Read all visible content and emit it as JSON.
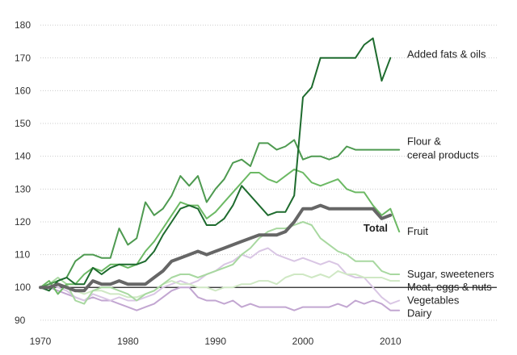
{
  "chart_data": {
    "type": "line",
    "title": "",
    "xlabel": "",
    "ylabel": "",
    "xlim": [
      1970,
      2012
    ],
    "ylim": [
      88,
      182
    ],
    "grid": true,
    "baseline": 100,
    "y_ticks": [
      90,
      100,
      110,
      120,
      130,
      140,
      150,
      160,
      170,
      180
    ],
    "x_ticks": [
      1970,
      1980,
      1990,
      2000,
      2010
    ],
    "series": [
      {
        "name": "Dairy",
        "color": "#c2a6d1",
        "width": 2,
        "x": [
          1970,
          1971,
          1972,
          1973,
          1974,
          1975,
          1976,
          1977,
          1978,
          1979,
          1980,
          1981,
          1982,
          1983,
          1984,
          1985,
          1986,
          1987,
          1988,
          1989,
          1990,
          1991,
          1992,
          1993,
          1994,
          1995,
          1996,
          1997,
          1998,
          1999,
          2000,
          2001,
          2002,
          2003,
          2004,
          2005,
          2006,
          2007,
          2008,
          2009,
          2010,
          2011
        ],
        "values": [
          100,
          100,
          99,
          98,
          97,
          96,
          97,
          96,
          96,
          95,
          94,
          93,
          94,
          95,
          97,
          99,
          100,
          100,
          97,
          96,
          96,
          95,
          96,
          94,
          95,
          94,
          94,
          94,
          94,
          93,
          94,
          94,
          94,
          94,
          95,
          94,
          96,
          95,
          96,
          95,
          93,
          93
        ]
      },
      {
        "name": "Vegetables",
        "color": "#d9c6e4",
        "width": 2,
        "x": [
          1970,
          1971,
          1972,
          1973,
          1974,
          1975,
          1976,
          1977,
          1978,
          1979,
          1980,
          1981,
          1982,
          1983,
          1984,
          1985,
          1986,
          1987,
          1988,
          1989,
          1990,
          1991,
          1992,
          1993,
          1994,
          1995,
          1996,
          1997,
          1998,
          1999,
          2000,
          2001,
          2002,
          2003,
          2004,
          2005,
          2006,
          2007,
          2008,
          2009,
          2010,
          2011
        ],
        "values": [
          100,
          101,
          100,
          99,
          97,
          96,
          98,
          97,
          96,
          97,
          96,
          96,
          97,
          98,
          100,
          101,
          102,
          101,
          102,
          104,
          105,
          107,
          108,
          110,
          109,
          111,
          112,
          110,
          109,
          108,
          109,
          108,
          107,
          108,
          107,
          104,
          103,
          103,
          100,
          97,
          95,
          96
        ]
      },
      {
        "name": "Meat, eggs & nuts",
        "color": "#cfe8c4",
        "width": 2,
        "x": [
          1970,
          1971,
          1972,
          1973,
          1974,
          1975,
          1976,
          1977,
          1978,
          1979,
          1980,
          1981,
          1982,
          1983,
          1984,
          1985,
          1986,
          1987,
          1988,
          1989,
          1990,
          1991,
          1992,
          1993,
          1994,
          1995,
          1996,
          1997,
          1998,
          1999,
          2000,
          2001,
          2002,
          2003,
          2004,
          2005,
          2006,
          2007,
          2008,
          2009,
          2010,
          2011
        ],
        "values": [
          100,
          100,
          101,
          100,
          99,
          98,
          99,
          99,
          98,
          98,
          97,
          97,
          98,
          99,
          101,
          102,
          101,
          101,
          100,
          100,
          99,
          100,
          100,
          101,
          101,
          102,
          102,
          101,
          103,
          104,
          104,
          103,
          104,
          103,
          105,
          104,
          104,
          103,
          103,
          103,
          102,
          102
        ]
      },
      {
        "name": "Sugar, sweeteners",
        "color": "#a8d8a0",
        "width": 2,
        "x": [
          1970,
          1971,
          1972,
          1973,
          1974,
          1975,
          1976,
          1977,
          1978,
          1979,
          1980,
          1981,
          1982,
          1983,
          1984,
          1985,
          1986,
          1987,
          1988,
          1989,
          1990,
          1991,
          1992,
          1993,
          1994,
          1995,
          1996,
          1997,
          1998,
          1999,
          2000,
          2001,
          2002,
          2003,
          2004,
          2005,
          2006,
          2007,
          2008,
          2009,
          2010,
          2011
        ],
        "values": [
          100,
          101,
          103,
          101,
          96,
          95,
          99,
          100,
          100,
          99,
          98,
          96,
          98,
          99,
          101,
          103,
          104,
          104,
          103,
          104,
          105,
          106,
          107,
          110,
          112,
          115,
          117,
          118,
          118,
          119,
          120,
          119,
          115,
          113,
          111,
          110,
          108,
          108,
          108,
          105,
          104,
          104
        ]
      },
      {
        "name": "Fruit",
        "color": "#6cb964",
        "width": 2,
        "x": [
          1970,
          1971,
          1972,
          1973,
          1974,
          1975,
          1976,
          1977,
          1978,
          1979,
          1980,
          1981,
          1982,
          1983,
          1984,
          1985,
          1986,
          1987,
          1988,
          1989,
          1990,
          1991,
          1992,
          1993,
          1994,
          1995,
          1996,
          1997,
          1998,
          1999,
          2000,
          2001,
          2002,
          2003,
          2004,
          2005,
          2006,
          2007,
          2008,
          2009,
          2010,
          2011
        ],
        "values": [
          100,
          102,
          98,
          101,
          101,
          104,
          106,
          105,
          107,
          107,
          106,
          107,
          111,
          114,
          118,
          122,
          126,
          125,
          125,
          121,
          123,
          126,
          129,
          132,
          135,
          135,
          133,
          132,
          134,
          136,
          135,
          132,
          131,
          132,
          133,
          130,
          129,
          129,
          125,
          122,
          124,
          117
        ]
      },
      {
        "name": "Flour & cereal products",
        "color": "#4e9a50",
        "width": 2,
        "x": [
          1970,
          1971,
          1972,
          1973,
          1974,
          1975,
          1976,
          1977,
          1978,
          1979,
          1980,
          1981,
          1982,
          1983,
          1984,
          1985,
          1986,
          1987,
          1988,
          1989,
          1990,
          1991,
          1992,
          1993,
          1994,
          1995,
          1996,
          1997,
          1998,
          1999,
          2000,
          2001,
          2002,
          2003,
          2004,
          2005,
          2006,
          2007,
          2008,
          2009,
          2010,
          2011
        ],
        "values": [
          100,
          101,
          102,
          103,
          108,
          110,
          110,
          109,
          109,
          118,
          113,
          115,
          126,
          122,
          124,
          128,
          134,
          131,
          134,
          126,
          130,
          133,
          138,
          139,
          137,
          144,
          144,
          142,
          143,
          145,
          139,
          140,
          140,
          139,
          140,
          143,
          142,
          142,
          142,
          142,
          142,
          142
        ]
      },
      {
        "name": "Added fats & oils",
        "color": "#1e6b2e",
        "width": 2,
        "x": [
          1970,
          1971,
          1972,
          1973,
          1974,
          1975,
          1976,
          1977,
          1978,
          1979,
          1980,
          1981,
          1982,
          1983,
          1984,
          1985,
          1986,
          1987,
          1988,
          1989,
          1990,
          1991,
          1992,
          1993,
          1994,
          1995,
          1996,
          1997,
          1998,
          1999,
          2000,
          2001,
          2002,
          2003,
          2004,
          2005,
          2006,
          2007,
          2008,
          2009,
          2010
        ],
        "values": [
          100,
          99,
          102,
          103,
          101,
          101,
          106,
          104,
          106,
          107,
          107,
          107,
          108,
          111,
          116,
          120,
          124,
          125,
          124,
          119,
          119,
          121,
          125,
          131,
          128,
          125,
          122,
          123,
          123,
          128,
          158,
          161,
          170,
          170,
          170,
          170,
          170,
          174,
          176,
          163,
          170
        ]
      },
      {
        "name": "Total",
        "color": "#666666",
        "width": 4,
        "x": [
          1970,
          1971,
          1972,
          1973,
          1974,
          1975,
          1976,
          1977,
          1978,
          1979,
          1980,
          1981,
          1982,
          1983,
          1984,
          1985,
          1986,
          1987,
          1988,
          1989,
          1990,
          1991,
          1992,
          1993,
          1994,
          1995,
          1996,
          1997,
          1998,
          1999,
          2000,
          2001,
          2002,
          2003,
          2004,
          2005,
          2006,
          2007,
          2008,
          2009,
          2010
        ],
        "values": [
          100,
          100,
          101,
          100,
          99,
          99,
          102,
          101,
          101,
          102,
          101,
          101,
          101,
          103,
          105,
          108,
          109,
          110,
          111,
          110,
          111,
          112,
          113,
          114,
          115,
          116,
          116,
          116,
          117,
          120,
          124,
          124,
          125,
          124,
          124,
          124,
          124,
          124,
          124,
          121,
          122
        ]
      }
    ],
    "labels": [
      {
        "text": "Added fats & oils",
        "series": "Added fats & oils",
        "value": 171,
        "bold": false
      },
      {
        "text": "Flour &",
        "series": "Flour & cereal products",
        "value": 144.5,
        "bold": false
      },
      {
        "text": "cereal products",
        "series": "Flour & cereal products",
        "value": 140.3,
        "bold": false
      },
      {
        "text": "Total",
        "series": "Total",
        "value": 118,
        "bold": true
      },
      {
        "text": "Fruit",
        "series": "Fruit",
        "value": 117,
        "bold": false
      },
      {
        "text": "Sugar, sweeteners",
        "series": "Sugar, sweeteners",
        "value": 104,
        "bold": false
      },
      {
        "text": "Meat, eggs & nuts",
        "series": "Meat, eggs & nuts",
        "value": 100,
        "bold": false
      },
      {
        "text": "Vegetables",
        "series": "Vegetables",
        "value": 96,
        "bold": false
      },
      {
        "text": "Dairy",
        "series": "Dairy",
        "value": 92,
        "bold": false
      }
    ]
  }
}
